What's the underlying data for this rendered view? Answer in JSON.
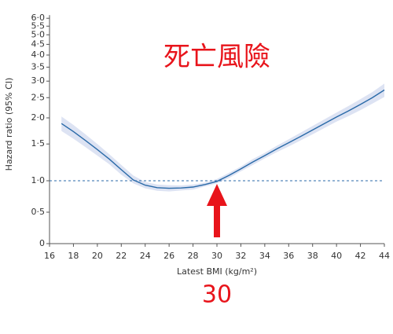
{
  "chart_data": {
    "type": "line",
    "ylabel": "Hazard ratio (95% CI)",
    "xlabel": "Latest BMI (kg/m²)",
    "yscale": "log",
    "xlim": [
      16,
      44
    ],
    "xticks": [
      16,
      18,
      20,
      22,
      24,
      26,
      28,
      30,
      32,
      34,
      36,
      38,
      40,
      42,
      44
    ],
    "ylim": [
      0,
      6
    ],
    "yticks": [
      0,
      {
        "value": 0.5,
        "label": "0·5"
      },
      {
        "value": 1,
        "label": "1·0"
      },
      {
        "value": 1.5,
        "label": "1·5"
      },
      {
        "value": 2,
        "label": "2·0"
      },
      {
        "value": 2.5,
        "label": "2·5"
      },
      {
        "value": 3,
        "label": "3·0"
      },
      {
        "value": 3.5,
        "label": "3·5"
      },
      {
        "value": 4,
        "label": "4·0"
      },
      {
        "value": 4.5,
        "label": "4·5"
      },
      {
        "value": 5,
        "label": "5·0"
      },
      {
        "value": 5.5,
        "label": "5·5"
      },
      {
        "value": 6,
        "label": "6·0"
      }
    ],
    "reference_line": 1,
    "x": [
      17,
      18,
      19,
      20,
      21,
      22,
      23,
      24,
      25,
      26,
      27,
      28,
      29,
      30,
      31,
      32,
      33,
      34,
      35,
      36,
      37,
      38,
      39,
      40,
      41,
      42,
      43,
      44
    ],
    "series": [
      {
        "color": "#2a6aa8",
        "values": [
          1.88,
          1.72,
          1.56,
          1.41,
          1.27,
          1.13,
          1.01,
          0.93,
          0.89,
          0.88,
          0.885,
          0.9,
          0.94,
          0.99,
          1.06,
          1.14,
          1.23,
          1.32,
          1.42,
          1.52,
          1.63,
          1.75,
          1.88,
          2.02,
          2.16,
          2.32,
          2.5,
          2.72
        ]
      }
    ],
    "band": {
      "color": "#dde3f3",
      "lower": [
        1.73,
        1.59,
        1.45,
        1.32,
        1.2,
        1.07,
        0.96,
        0.88,
        0.84,
        0.83,
        0.845,
        0.86,
        0.91,
        0.96,
        1.03,
        1.11,
        1.19,
        1.28,
        1.37,
        1.46,
        1.56,
        1.67,
        1.79,
        1.92,
        2.04,
        2.18,
        2.34,
        2.52
      ],
      "upper": [
        2.03,
        1.85,
        1.67,
        1.5,
        1.34,
        1.19,
        1.06,
        0.98,
        0.94,
        0.93,
        0.925,
        0.94,
        0.97,
        1.02,
        1.09,
        1.17,
        1.27,
        1.36,
        1.47,
        1.58,
        1.7,
        1.83,
        1.97,
        2.12,
        2.28,
        2.46,
        2.66,
        2.92
      ]
    },
    "annotations": [
      {
        "text": "死亡風險",
        "color": "#e8141b"
      },
      {
        "text": "30",
        "x": 30,
        "color": "#e8141b"
      }
    ]
  }
}
